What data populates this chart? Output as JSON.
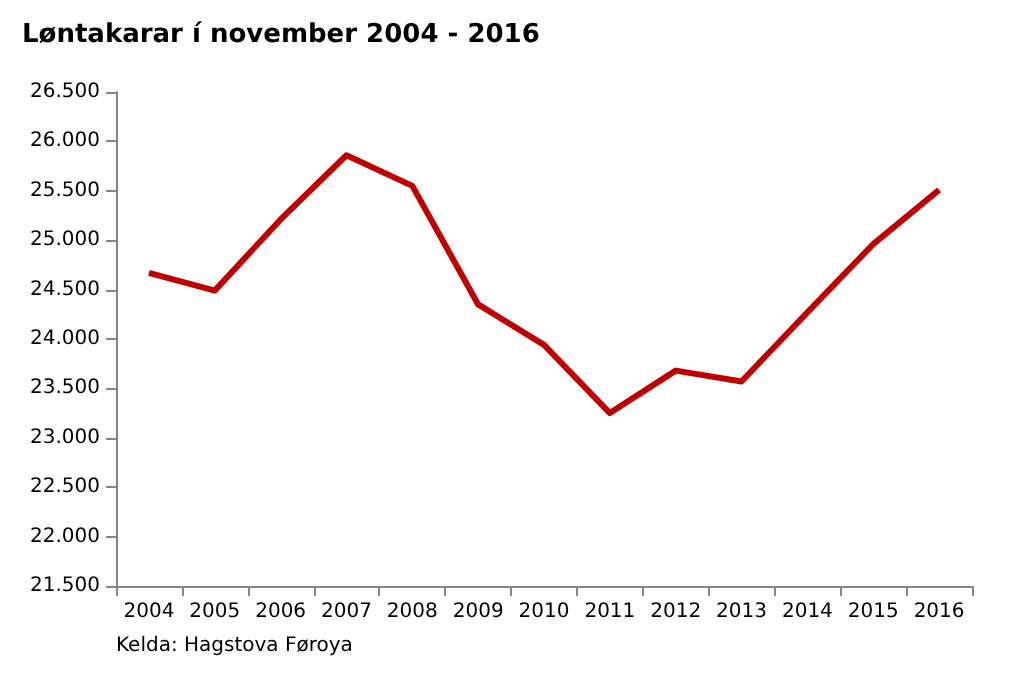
{
  "chart_data": {
    "type": "line",
    "title": "Løntakarar í november 2004 - 2016",
    "categories": [
      "2004",
      "2005",
      "2006",
      "2007",
      "2008",
      "2009",
      "2010",
      "2011",
      "2012",
      "2013",
      "2014",
      "2015",
      "2016"
    ],
    "series": [
      {
        "color": "#c00000",
        "values": [
          24670,
          24490,
          25210,
          25860,
          25550,
          24350,
          23940,
          23250,
          23680,
          23570,
          24270,
          24960,
          25510
        ]
      }
    ],
    "ylim": [
      21500,
      26500
    ],
    "yticks": [
      {
        "value": 21500,
        "label": "21.500"
      },
      {
        "value": 22000,
        "label": "22.000"
      },
      {
        "value": 22500,
        "label": "22.500"
      },
      {
        "value": 23000,
        "label": "23.000"
      },
      {
        "value": 23500,
        "label": "23.500"
      },
      {
        "value": 24000,
        "label": "24.000"
      },
      {
        "value": 24500,
        "label": "24.500"
      },
      {
        "value": 25000,
        "label": "25.000"
      },
      {
        "value": 25500,
        "label": "25.500"
      },
      {
        "value": 26000,
        "label": "26.000"
      },
      {
        "value": 26500,
        "label": "26.500"
      }
    ],
    "grid": false,
    "marker": "none",
    "line_style": "solid",
    "annotations": [
      "Kelda: Hagstova Føroya"
    ]
  }
}
